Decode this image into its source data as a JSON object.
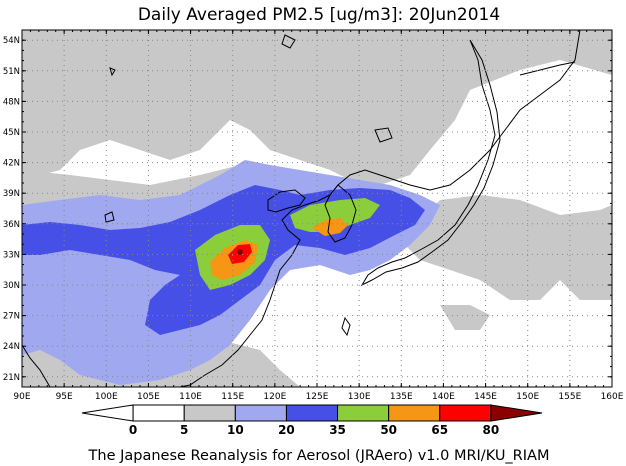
{
  "title": "Daily Averaged PM2.5 [ug/m3]: 20Jun2014",
  "footer": "The Japanese Reanalysis for Aerosol (JRAero) v1.0 MRI/KU_RIAM",
  "map": {
    "lon_range": [
      90,
      160
    ],
    "lat_range": [
      20,
      55
    ],
    "lon_ticks": [
      "90E",
      "95E",
      "100E",
      "105E",
      "110E",
      "115E",
      "120E",
      "125E",
      "130E",
      "135E",
      "140E",
      "145E",
      "150E",
      "155E",
      "160E"
    ],
    "lat_ticks": [
      "54N",
      "51N",
      "48N",
      "45N",
      "42N",
      "39N",
      "36N",
      "33N",
      "30N",
      "27N",
      "24N",
      "21N"
    ],
    "lat_tick_values": [
      54,
      51,
      48,
      45,
      42,
      39,
      36,
      33,
      30,
      27,
      24,
      21
    ],
    "grid": true,
    "hotspots": [
      {
        "lon": 116.0,
        "lat": 33.0,
        "value": "80"
      },
      {
        "lon": 128.0,
        "lat": 35.6,
        "value": "65"
      }
    ]
  },
  "colorbar": {
    "levels": [
      "0",
      "5",
      "10",
      "20",
      "35",
      "50",
      "65",
      "80"
    ],
    "colors": [
      "#ffffff",
      "#ffffff",
      "#c8c8c8",
      "#a0a8f0",
      "#4650e6",
      "#8ccd3c",
      "#f59614",
      "#ff0000",
      "#8b0000"
    ]
  }
}
